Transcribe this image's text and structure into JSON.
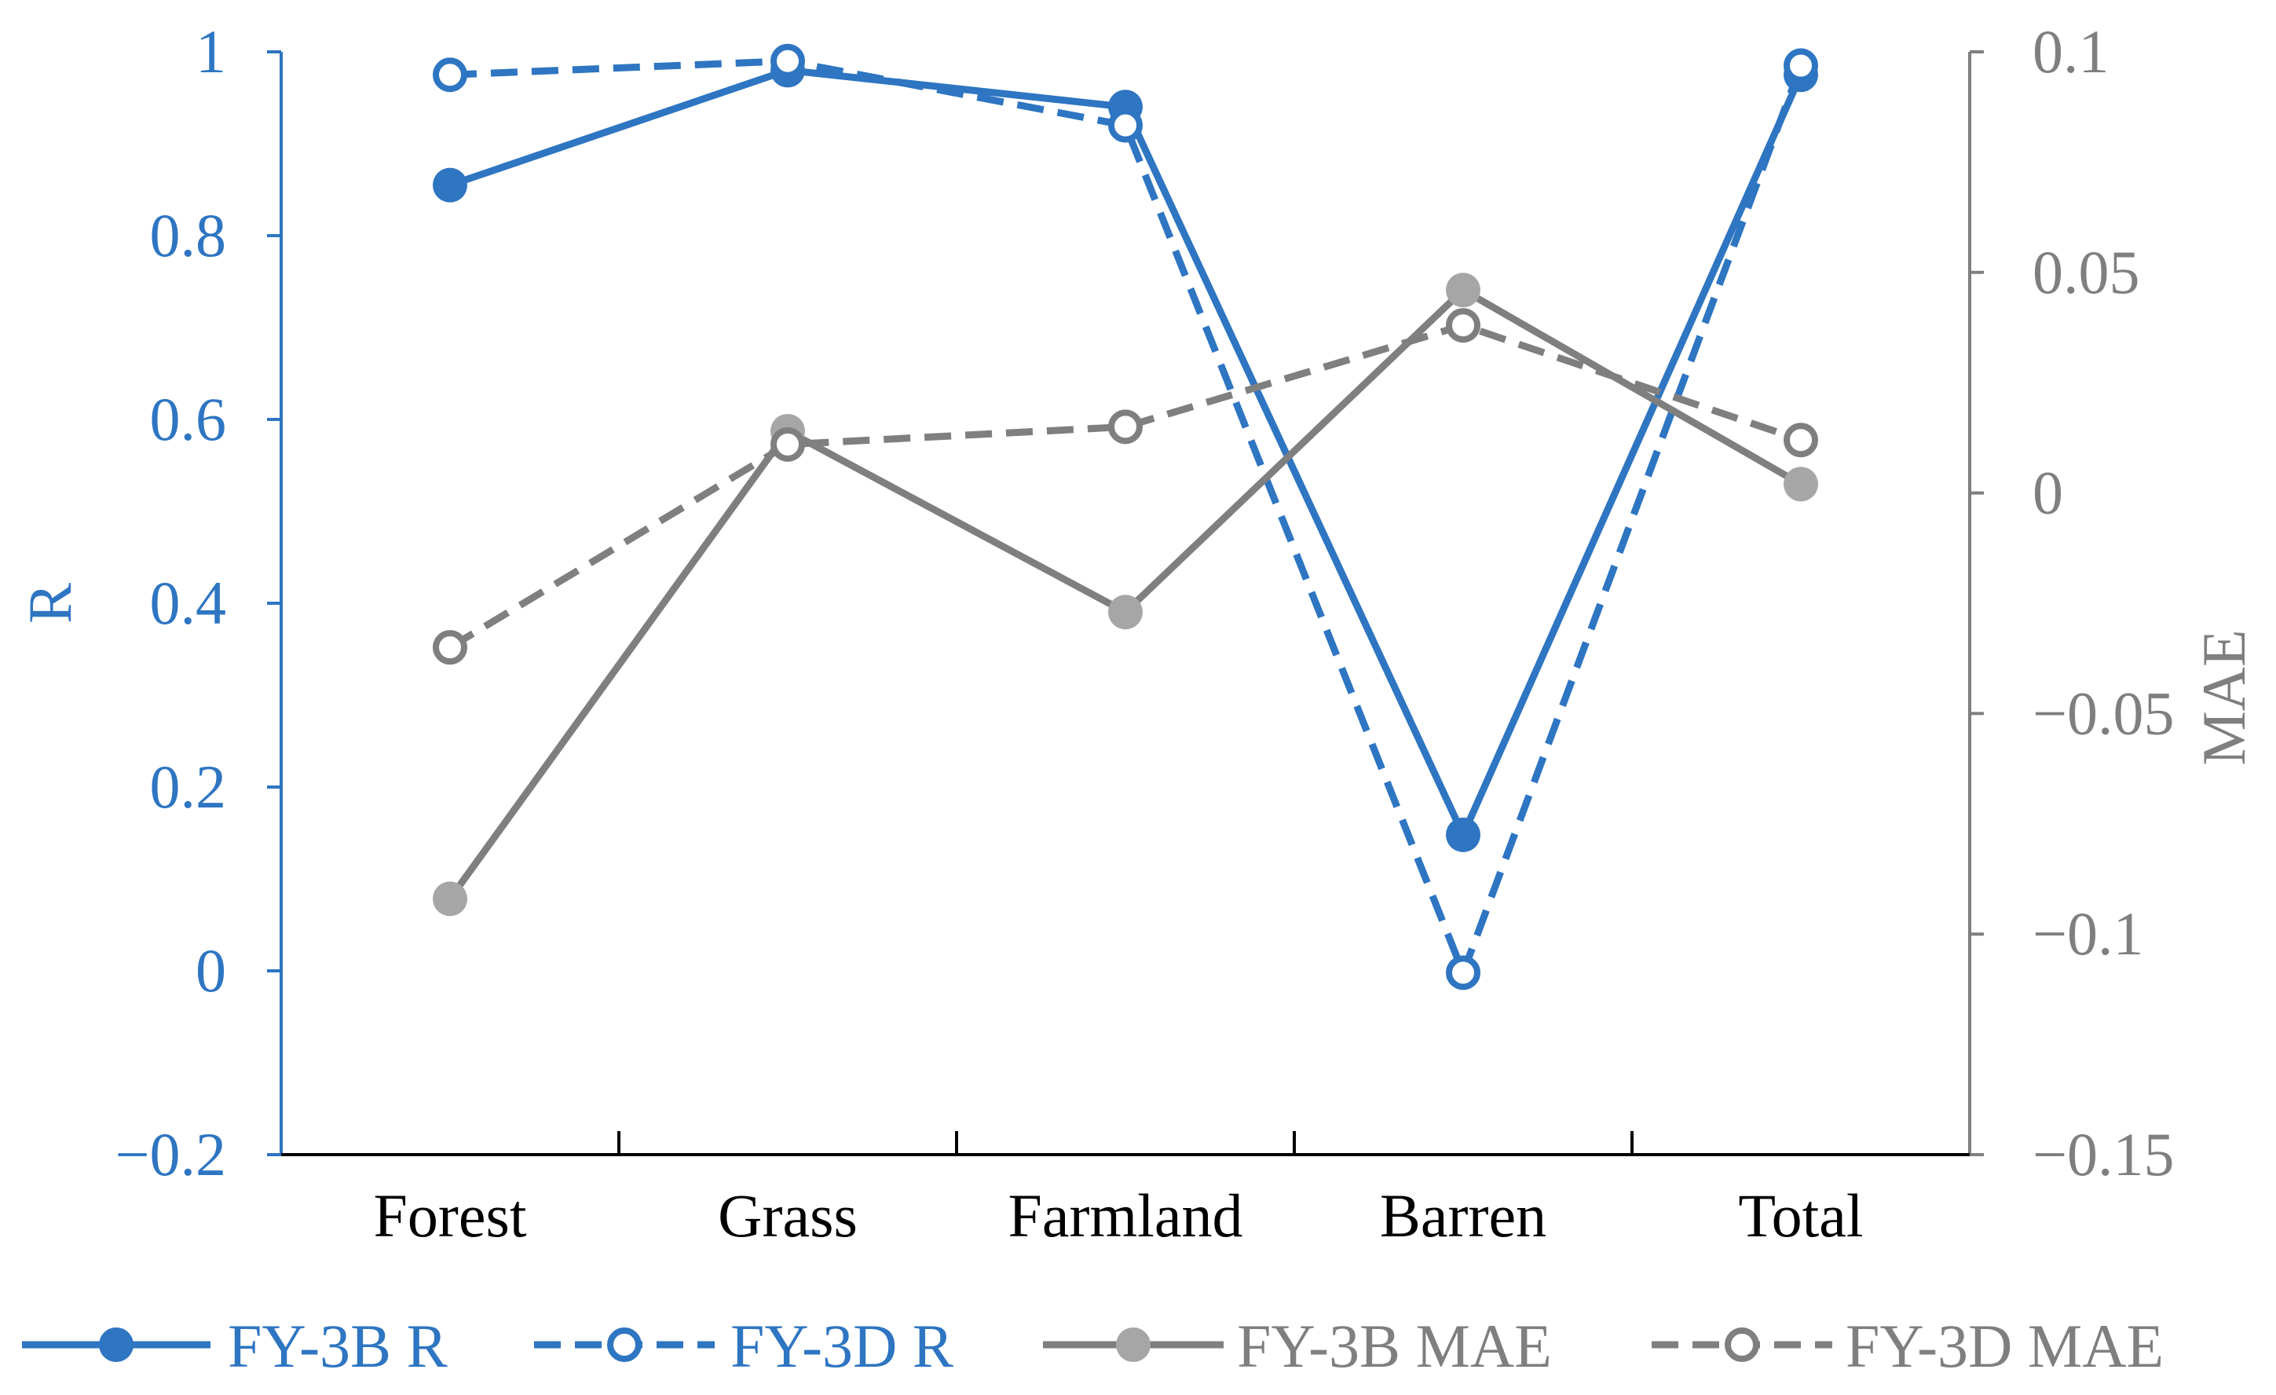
{
  "chart_data": {
    "type": "line",
    "categories": [
      "Forest",
      "Grass",
      "Farmland",
      "Barren",
      "Total"
    ],
    "y_left": {
      "label": "R",
      "range": [
        -0.2,
        1
      ],
      "ticks": [
        -0.2,
        0,
        0.2,
        0.4,
        0.6,
        0.8,
        1
      ],
      "tick_labels": [
        "−0.2",
        "0",
        "0.2",
        "0.4",
        "0.6",
        "0.8",
        "1"
      ],
      "color": "#2e75c2"
    },
    "y_right": {
      "label": "MAE",
      "range": [
        -0.15,
        0.1
      ],
      "ticks": [
        -0.15,
        -0.1,
        -0.05,
        0,
        0.05,
        0.1
      ],
      "tick_labels": [
        "−0.15",
        "−0.1",
        "−0.05",
        "0",
        "0.05",
        "0.1"
      ],
      "color": "#7f7f7f"
    },
    "series": [
      {
        "name": "FY-3B R",
        "axis": "left",
        "color": "#2e75c2",
        "style": "solid",
        "marker": "filled",
        "values": [
          0.855,
          0.98,
          0.94,
          0.148,
          0.975
        ]
      },
      {
        "name": "FY-3D R",
        "axis": "left",
        "color": "#2e75c2",
        "style": "dashed",
        "marker": "open",
        "values": [
          0.975,
          0.99,
          0.92,
          -0.002,
          0.985
        ]
      },
      {
        "name": "FY-3B MAE",
        "axis": "right",
        "color": "#7f7f7f",
        "marker_color": "#a6a6a6",
        "style": "solid",
        "marker": "filled",
        "values": [
          -0.092,
          0.014,
          -0.027,
          0.046,
          0.002
        ]
      },
      {
        "name": "FY-3D MAE",
        "axis": "right",
        "color": "#7f7f7f",
        "style": "dashed",
        "marker": "open",
        "values": [
          -0.035,
          0.011,
          0.015,
          0.038,
          0.012
        ]
      }
    ],
    "legend_position": "bottom",
    "grid": false
  }
}
